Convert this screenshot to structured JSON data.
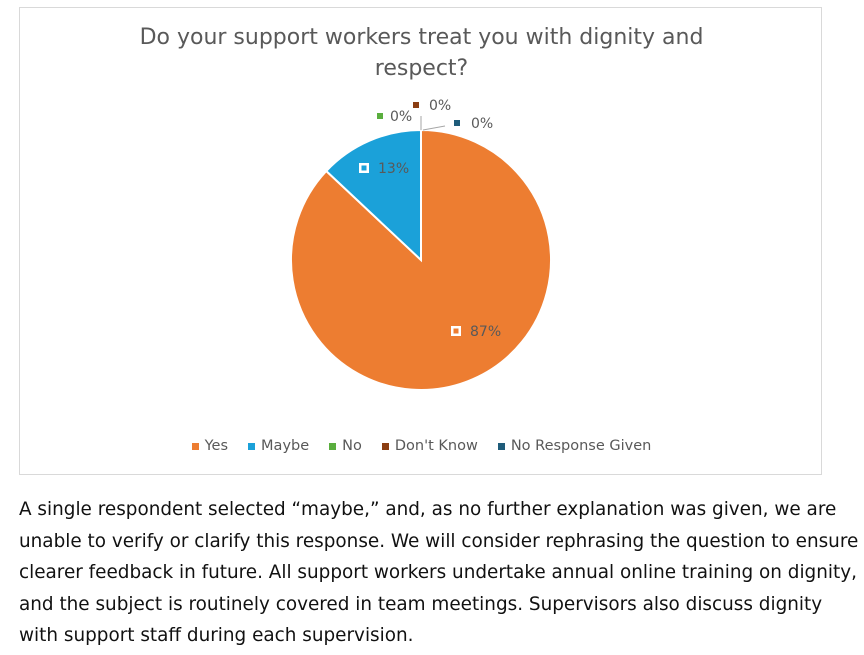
{
  "chart_data": {
    "type": "pie",
    "title": "Do your support workers treat you with dignity and respect?",
    "title_lines": [
      "Do your support workers treat you with dignity and",
      "respect?"
    ],
    "categories": [
      "Yes",
      "Maybe",
      "No",
      "Don't Know",
      "No Response Given"
    ],
    "values": [
      87,
      13,
      0,
      0,
      0
    ],
    "labels": [
      "87%",
      "13%",
      "0%",
      "0%",
      "0%"
    ],
    "colors": [
      "#ED7D31",
      "#1BA1D9",
      "#5AAE3E",
      "#8B3E12",
      "#1F5C7A"
    ],
    "legend_position": "bottom",
    "start_angle_deg": 0,
    "direction": "clockwise"
  },
  "caption": "A single respondent selected “maybe,” and, as no further explanation was given, we are unable to verify or clarify this response. We will consider rephrasing the question to ensure clearer feedback in future. All support workers undertake annual online training on dignity, and the subject is routinely covered in team meetings. Supervisors also discuss dignity with support staff during each supervision."
}
